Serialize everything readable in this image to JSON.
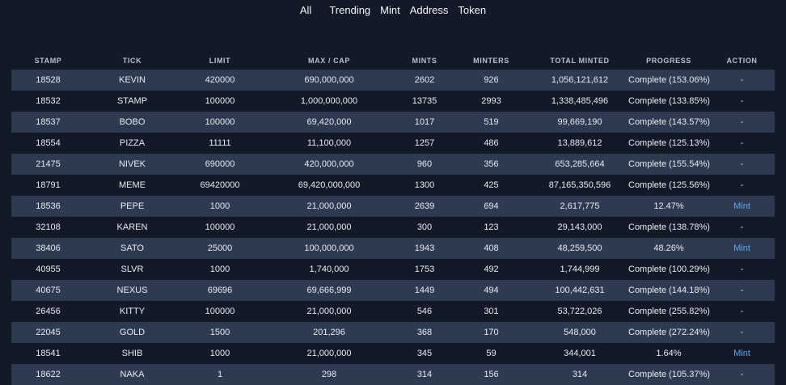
{
  "nav": {
    "items": [
      "All",
      "Trending",
      "Mint",
      "Address",
      "Token"
    ]
  },
  "table": {
    "headers": [
      "STAMP",
      "TICK",
      "LIMIT",
      "MAX / CAP",
      "MINTS",
      "MINTERS",
      "TOTAL MINTED",
      "PROGRESS",
      "ACTION"
    ],
    "rows": [
      {
        "stamp": "18528",
        "tick": "KEVIN",
        "limit": "420000",
        "max": "690,000,000",
        "mints": "2602",
        "minters": "926",
        "total": "1,056,121,612",
        "progress": "Complete (153.06%)",
        "action": "-"
      },
      {
        "stamp": "18532",
        "tick": "STAMP",
        "limit": "100000",
        "max": "1,000,000,000",
        "mints": "13735",
        "minters": "2993",
        "total": "1,338,485,496",
        "progress": "Complete (133.85%)",
        "action": "-"
      },
      {
        "stamp": "18537",
        "tick": "BOBO",
        "limit": "100000",
        "max": "69,420,000",
        "mints": "1017",
        "minters": "519",
        "total": "99,669,190",
        "progress": "Complete (143.57%)",
        "action": "-"
      },
      {
        "stamp": "18554",
        "tick": "PIZZA",
        "limit": "11111",
        "max": "11,100,000",
        "mints": "1257",
        "minters": "486",
        "total": "13,889,612",
        "progress": "Complete (125.13%)",
        "action": "-"
      },
      {
        "stamp": "21475",
        "tick": "NIVEK",
        "limit": "690000",
        "max": "420,000,000",
        "mints": "960",
        "minters": "356",
        "total": "653,285,664",
        "progress": "Complete (155.54%)",
        "action": "-"
      },
      {
        "stamp": "18791",
        "tick": "MEME",
        "limit": "69420000",
        "max": "69,420,000,000",
        "mints": "1300",
        "minters": "425",
        "total": "87,165,350,596",
        "progress": "Complete (125.56%)",
        "action": "-"
      },
      {
        "stamp": "18536",
        "tick": "PEPE",
        "limit": "1000",
        "max": "21,000,000",
        "mints": "2639",
        "minters": "694",
        "total": "2,617,775",
        "progress": "12.47%",
        "action": "Mint"
      },
      {
        "stamp": "32108",
        "tick": "KAREN",
        "limit": "100000",
        "max": "21,000,000",
        "mints": "300",
        "minters": "123",
        "total": "29,143,000",
        "progress": "Complete (138.78%)",
        "action": "-"
      },
      {
        "stamp": "38406",
        "tick": "SATO",
        "limit": "25000",
        "max": "100,000,000",
        "mints": "1943",
        "minters": "408",
        "total": "48,259,500",
        "progress": "48.26%",
        "action": "Mint"
      },
      {
        "stamp": "40955",
        "tick": "SLVR",
        "limit": "1000",
        "max": "1,740,000",
        "mints": "1753",
        "minters": "492",
        "total": "1,744,999",
        "progress": "Complete (100.29%)",
        "action": "-"
      },
      {
        "stamp": "40675",
        "tick": "NEXUS",
        "limit": "69696",
        "max": "69,666,999",
        "mints": "1449",
        "minters": "494",
        "total": "100,442,631",
        "progress": "Complete (144.18%)",
        "action": "-"
      },
      {
        "stamp": "26456",
        "tick": "KITTY",
        "limit": "100000",
        "max": "21,000,000",
        "mints": "546",
        "minters": "301",
        "total": "53,722,026",
        "progress": "Complete (255.82%)",
        "action": "-"
      },
      {
        "stamp": "22045",
        "tick": "GOLD",
        "limit": "1500",
        "max": "201,296",
        "mints": "368",
        "minters": "170",
        "total": "548,000",
        "progress": "Complete (272.24%)",
        "action": "-"
      },
      {
        "stamp": "18541",
        "tick": "SHIB",
        "limit": "1000",
        "max": "21,000,000",
        "mints": "345",
        "minters": "59",
        "total": "344,001",
        "progress": "1.64%",
        "action": "Mint"
      },
      {
        "stamp": "18622",
        "tick": "NAKA",
        "limit": "1",
        "max": "298",
        "mints": "314",
        "minters": "156",
        "total": "314",
        "progress": "Complete (105.37%)",
        "action": "-"
      }
    ]
  },
  "colors": {
    "background": "#121a28",
    "row_stripe": "#2e3a4f",
    "mint_link": "#5aa9f0"
  }
}
